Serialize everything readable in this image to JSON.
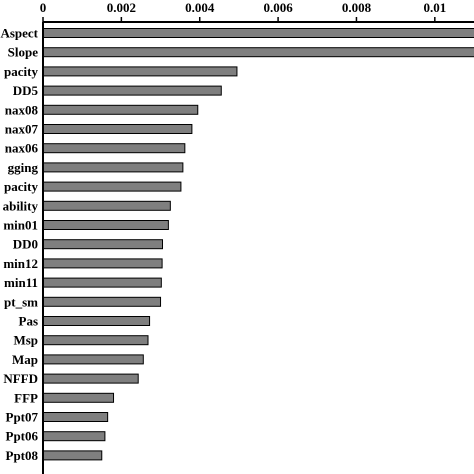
{
  "chart_data": {
    "type": "bar",
    "orientation": "horizontal",
    "title": "",
    "xlabel": "",
    "ylabel": "",
    "xlim": [
      0,
      0.011
    ],
    "x_ticks": [
      "0",
      "0.002",
      "0.004",
      "0.006",
      "0.008",
      "0.01"
    ],
    "x_tick_values": [
      0,
      0.002,
      0.004,
      0.006,
      0.008,
      0.01
    ],
    "x_axis_position": "top",
    "grid": false,
    "bar_color": "#7f7f7f",
    "categories": [
      "Aspect",
      "Slope",
      "pacity",
      "DD5",
      "nax08",
      "nax07",
      "nax06",
      "gging",
      "pacity",
      "ability",
      "min01",
      "DD0",
      "min12",
      "min11",
      "pt_sm",
      "Pas",
      "Msp",
      "Map",
      "NFFD",
      "FFP",
      "Ppt07",
      "Ppt06",
      "Ppt08"
    ],
    "values": [
      0.0115,
      0.0115,
      0.00495,
      0.00455,
      0.00395,
      0.0038,
      0.00362,
      0.00357,
      0.00352,
      0.00325,
      0.0032,
      0.00305,
      0.00304,
      0.00302,
      0.003,
      0.00272,
      0.00268,
      0.00256,
      0.00243,
      0.0018,
      0.00165,
      0.00158,
      0.0015
    ]
  }
}
